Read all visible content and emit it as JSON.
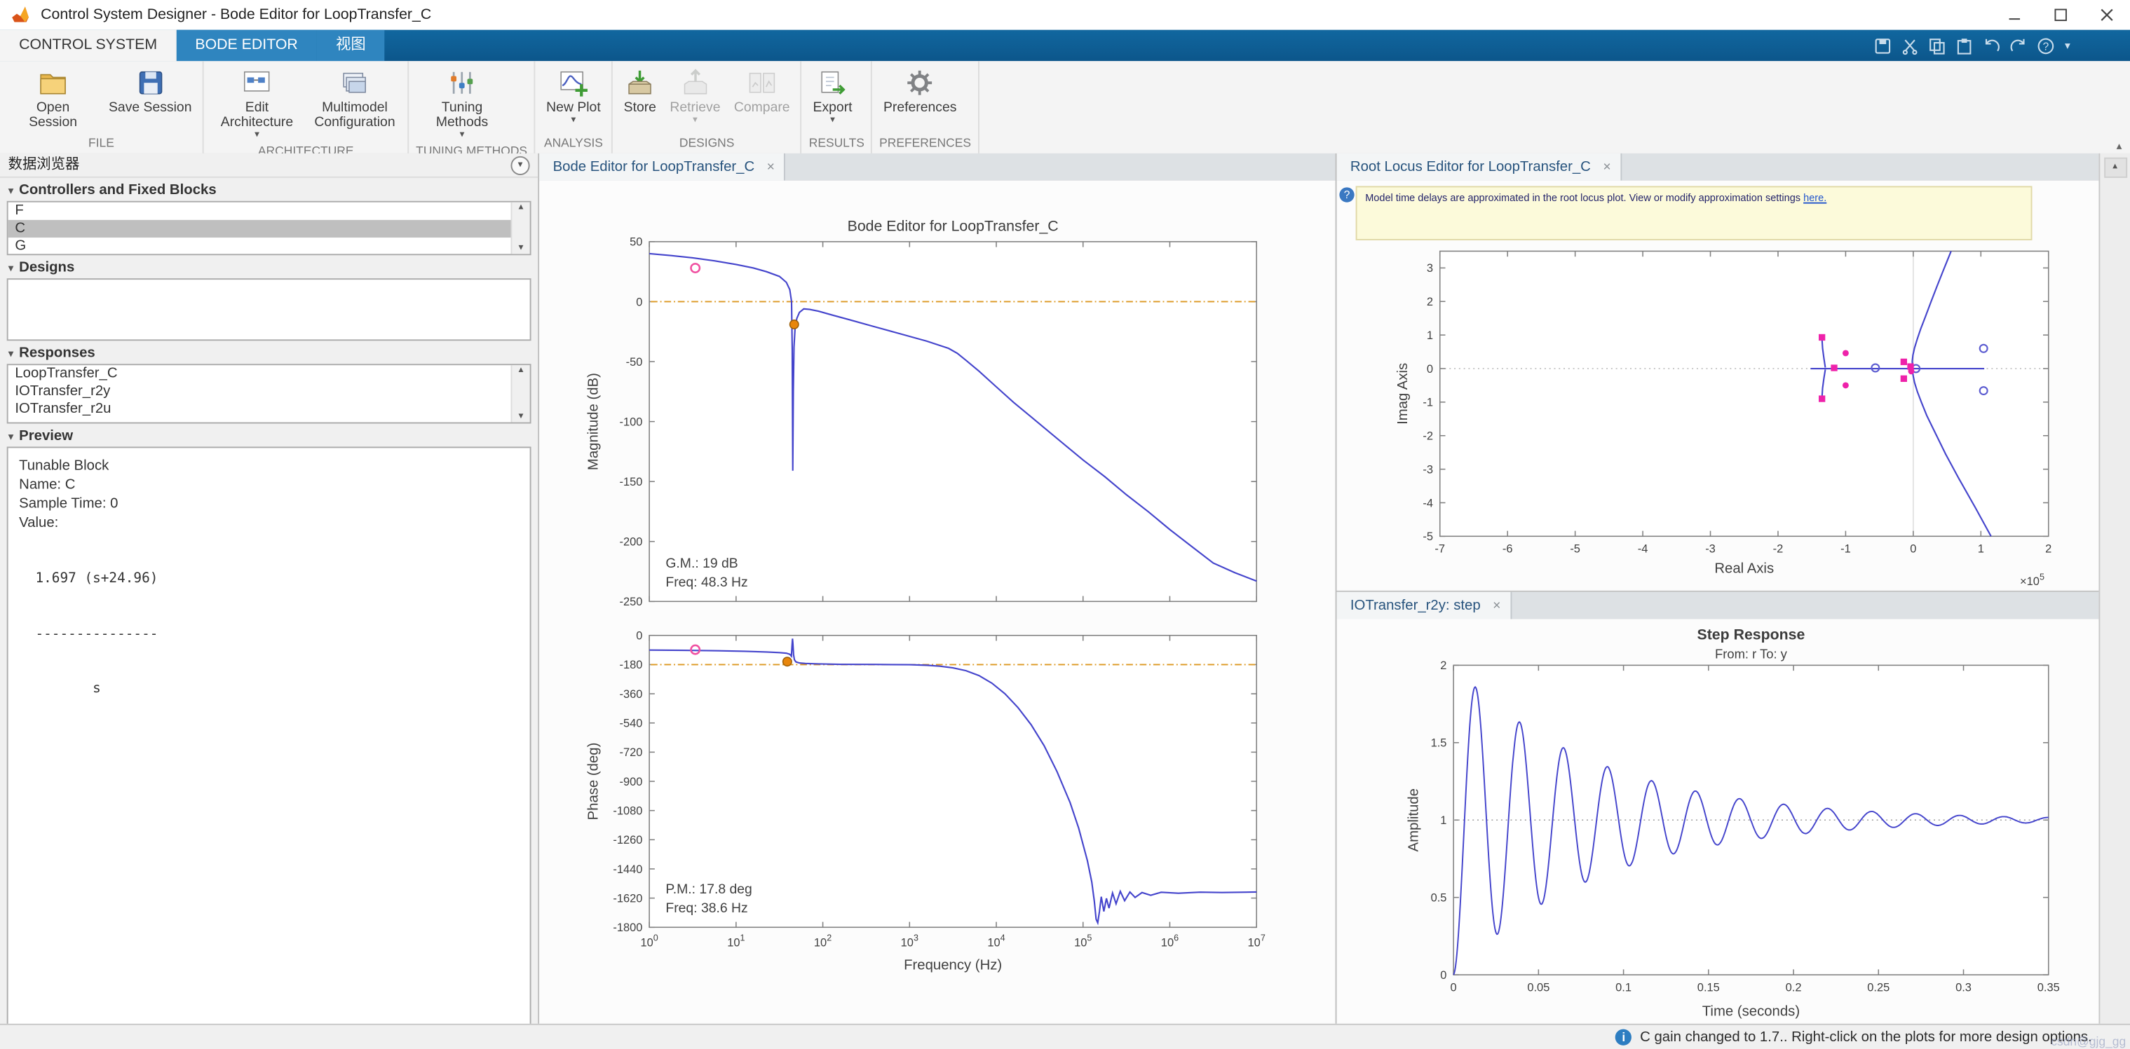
{
  "window": {
    "title": "Control System Designer - Bode Editor for LoopTransfer_C"
  },
  "ribbon": {
    "tabs": [
      {
        "label": "CONTROL SYSTEM"
      },
      {
        "label": "BODE EDITOR"
      },
      {
        "label": "视图"
      }
    ],
    "groups": [
      {
        "label": "FILE",
        "buttons": [
          {
            "label": "Open Session"
          },
          {
            "label": "Save Session"
          }
        ]
      },
      {
        "label": "ARCHITECTURE",
        "buttons": [
          {
            "label": "Edit Architecture",
            "dropdown": true
          },
          {
            "label": "Multimodel Configuration"
          }
        ]
      },
      {
        "label": "TUNING METHODS",
        "buttons": [
          {
            "label": "Tuning Methods",
            "dropdown": true
          }
        ]
      },
      {
        "label": "ANALYSIS",
        "buttons": [
          {
            "label": "New Plot",
            "dropdown": true
          }
        ]
      },
      {
        "label": "DESIGNS",
        "buttons": [
          {
            "label": "Store"
          },
          {
            "label": "Retrieve",
            "dropdown": true,
            "disabled": true
          },
          {
            "label": "Compare",
            "disabled": true
          }
        ]
      },
      {
        "label": "RESULTS",
        "buttons": [
          {
            "label": "Export",
            "dropdown": true
          }
        ]
      },
      {
        "label": "PREFERENCES",
        "buttons": [
          {
            "label": "Preferences"
          }
        ]
      }
    ]
  },
  "data_browser": {
    "title": "数据浏览器",
    "controllers_section": {
      "title": "Controllers and Fixed Blocks",
      "items": [
        "F",
        "C",
        "G"
      ],
      "selected": "C"
    },
    "designs_section": {
      "title": "Designs"
    },
    "responses_section": {
      "title": "Responses",
      "items": [
        "LoopTransfer_C",
        "IOTransfer_r2y",
        "IOTransfer_r2u"
      ]
    },
    "preview_section": {
      "title": "Preview",
      "lines": [
        "Tunable Block",
        "Name: C",
        "Sample Time: 0",
        "Value:"
      ],
      "tf_numerator": "  1.697 (s+24.96)",
      "tf_rule": "  ---------------",
      "tf_denominator": "         s"
    }
  },
  "bode_panel": {
    "tab": "Bode Editor for LoopTransfer_C"
  },
  "rootlocus_panel": {
    "tab": "Root Locus Editor for LoopTransfer_C",
    "info_message": "Model time delays are approximated in the root locus plot. View or modify approximation settings",
    "info_link": "here."
  },
  "step_panel": {
    "tab": "IOTransfer_r2y: step"
  },
  "status_bar": {
    "message": "C gain changed to 1.7.. Right-click on the plots for more design options.",
    "watermark": "csdn@gjg_gg"
  },
  "colors": {
    "curve": "#4444cc",
    "ref_line": "#dd9922",
    "marker_pink": "#f04fa0",
    "marker_orange": "#e8860c",
    "locus_magenta": "#ee22aa",
    "zero_blue": "#5a5ad0"
  },
  "chart_data": [
    {
      "type": "line",
      "id": "bode",
      "title": "Bode Editor for LoopTransfer_C",
      "xlabel": "Frequency (Hz)",
      "x_scale": "log10",
      "x_decades": [
        0,
        1,
        2,
        3,
        4,
        5,
        6,
        7
      ],
      "magnitude": {
        "ylabel": "Magnitude (dB)",
        "ylim": [
          -250,
          50
        ],
        "yticks": [
          50,
          0,
          -50,
          -100,
          -150,
          -200,
          -250
        ],
        "ref_line": 0,
        "margin_lines": [
          "G.M.: 19 dB",
          "Freq: 48.3 Hz"
        ],
        "markers": [
          {
            "type": "circle",
            "logf": 0.53,
            "value": 28
          },
          {
            "type": "dot",
            "logf": 1.67,
            "value": -19
          }
        ],
        "points": [
          [
            0,
            40
          ],
          [
            0.25,
            38.5
          ],
          [
            0.5,
            36.5
          ],
          [
            0.75,
            34
          ],
          [
            1,
            31
          ],
          [
            1.2,
            28
          ],
          [
            1.35,
            25
          ],
          [
            1.5,
            21
          ],
          [
            1.58,
            16
          ],
          [
            1.62,
            10
          ],
          [
            1.64,
            0
          ],
          [
            1.648,
            -40
          ],
          [
            1.654,
            -141
          ],
          [
            1.66,
            -75
          ],
          [
            1.668,
            -38
          ],
          [
            1.68,
            -22
          ],
          [
            1.7,
            -14
          ],
          [
            1.73,
            -9
          ],
          [
            1.78,
            -6
          ],
          [
            1.85,
            -6.5
          ],
          [
            1.95,
            -8
          ],
          [
            2.1,
            -11
          ],
          [
            2.3,
            -15
          ],
          [
            2.6,
            -21
          ],
          [
            2.9,
            -27
          ],
          [
            3.2,
            -33
          ],
          [
            3.45,
            -39
          ],
          [
            3.55,
            -43
          ],
          [
            3.65,
            -49
          ],
          [
            3.8,
            -58
          ],
          [
            4,
            -71
          ],
          [
            4.2,
            -84
          ],
          [
            4.4,
            -96
          ],
          [
            4.6,
            -108
          ],
          [
            4.8,
            -120
          ],
          [
            5,
            -132
          ],
          [
            5.25,
            -146
          ],
          [
            5.5,
            -161
          ],
          [
            5.75,
            -175
          ],
          [
            6,
            -190
          ],
          [
            6.25,
            -204
          ],
          [
            6.5,
            -218
          ],
          [
            6.75,
            -226
          ],
          [
            7,
            -233
          ]
        ]
      },
      "phase": {
        "ylabel": "Phase (deg)",
        "ylim": [
          -1800,
          0
        ],
        "yticks": [
          0,
          -180,
          -360,
          -540,
          -720,
          -900,
          -1080,
          -1260,
          -1440,
          -1620,
          -1800
        ],
        "ref_line": -180,
        "margin_lines": [
          "P.M.: 17.8 deg",
          "Freq: 38.6 Hz"
        ],
        "markers": [
          {
            "type": "circle",
            "logf": 0.53,
            "value": -88
          },
          {
            "type": "dot",
            "logf": 1.59,
            "value": -162
          }
        ],
        "points": [
          [
            0,
            -90
          ],
          [
            0.4,
            -92
          ],
          [
            0.8,
            -95
          ],
          [
            1.1,
            -98
          ],
          [
            1.35,
            -102
          ],
          [
            1.5,
            -106
          ],
          [
            1.58,
            -110
          ],
          [
            1.62,
            -116
          ],
          [
            1.638,
            -128
          ],
          [
            1.645,
            -70
          ],
          [
            1.65,
            -20
          ],
          [
            1.656,
            -50
          ],
          [
            1.663,
            -120
          ],
          [
            1.672,
            -150
          ],
          [
            1.69,
            -163
          ],
          [
            1.73,
            -170
          ],
          [
            1.8,
            -173
          ],
          [
            1.95,
            -176
          ],
          [
            2.2,
            -178
          ],
          [
            2.6,
            -179
          ],
          [
            3,
            -181
          ],
          [
            3.2,
            -184
          ],
          [
            3.35,
            -190
          ],
          [
            3.5,
            -200
          ],
          [
            3.65,
            -218
          ],
          [
            3.8,
            -248
          ],
          [
            3.95,
            -295
          ],
          [
            4.1,
            -360
          ],
          [
            4.25,
            -445
          ],
          [
            4.4,
            -550
          ],
          [
            4.55,
            -680
          ],
          [
            4.7,
            -840
          ],
          [
            4.85,
            -1030
          ],
          [
            4.95,
            -1190
          ],
          [
            5.05,
            -1390
          ],
          [
            5.1,
            -1520
          ],
          [
            5.13,
            -1640
          ],
          [
            5.15,
            -1750
          ],
          [
            5.17,
            -1772
          ],
          [
            5.19,
            -1700
          ],
          [
            5.21,
            -1612
          ],
          [
            5.24,
            -1702
          ],
          [
            5.27,
            -1622
          ],
          [
            5.3,
            -1682
          ],
          [
            5.34,
            -1588
          ],
          [
            5.38,
            -1655
          ],
          [
            5.43,
            -1578
          ],
          [
            5.48,
            -1636
          ],
          [
            5.54,
            -1582
          ],
          [
            5.6,
            -1616
          ],
          [
            5.68,
            -1586
          ],
          [
            5.78,
            -1602
          ],
          [
            5.9,
            -1584
          ],
          [
            6.1,
            -1590
          ],
          [
            6.35,
            -1583
          ],
          [
            6.6,
            -1586
          ],
          [
            7,
            -1582
          ]
        ]
      }
    },
    {
      "type": "scatter",
      "id": "rootlocus",
      "xlabel": "Real Axis",
      "ylabel": "Imag Axis",
      "x_multiplier_exp": 5,
      "xlim": [
        -7,
        2
      ],
      "ylim": [
        -5,
        3.5
      ],
      "xticks": [
        -7,
        -6,
        -5,
        -4,
        -3,
        -2,
        -1,
        0,
        1,
        2
      ],
      "yticks": [
        3,
        2,
        1,
        0,
        -1,
        -2,
        -3,
        -4,
        -5
      ],
      "branches": [
        [
          [
            0.56,
            3.5
          ],
          [
            0.45,
            2.95
          ],
          [
            0.35,
            2.45
          ],
          [
            0.26,
            1.98
          ],
          [
            0.18,
            1.55
          ],
          [
            0.11,
            1.18
          ],
          [
            0.06,
            0.88
          ],
          [
            0.02,
            0.62
          ],
          [
            -0.005,
            0.4
          ],
          [
            -0.015,
            0.22
          ],
          [
            -0.01,
            0.08
          ]
        ],
        [
          [
            -0.01,
            -0.08
          ],
          [
            0,
            -0.22
          ],
          [
            0.02,
            -0.42
          ],
          [
            0.06,
            -0.68
          ],
          [
            0.12,
            -1.0
          ],
          [
            0.2,
            -1.4
          ],
          [
            0.32,
            -1.9
          ],
          [
            0.48,
            -2.55
          ],
          [
            0.68,
            -3.3
          ],
          [
            0.92,
            -4.15
          ],
          [
            1.15,
            -5
          ]
        ],
        [
          [
            -1.52,
            0
          ],
          [
            1.05,
            0
          ]
        ],
        [
          [
            -1.35,
            0.92
          ],
          [
            -1.34,
            0.6
          ],
          [
            -1.32,
            0.3
          ],
          [
            -1.3,
            0.03
          ]
        ],
        [
          [
            -1.35,
            -0.9
          ],
          [
            -1.34,
            -0.58
          ],
          [
            -1.32,
            -0.28
          ],
          [
            -1.3,
            -0.03
          ]
        ]
      ],
      "closed_loop_poles_squares": [
        [
          -1.35,
          0.93
        ],
        [
          -1.35,
          -0.9
        ],
        [
          -1.17,
          0.02
        ],
        [
          -0.14,
          0.2
        ],
        [
          -0.14,
          -0.3
        ],
        [
          -0.04,
          0.06
        ]
      ],
      "pink_dots": [
        [
          -1.0,
          0.46
        ],
        [
          -1.0,
          -0.5
        ],
        [
          -0.03,
          -0.08
        ]
      ],
      "zeros_circles": [
        [
          1.04,
          0.6
        ],
        [
          1.04,
          -0.66
        ],
        [
          -0.56,
          0.02
        ],
        [
          0.04,
          0
        ]
      ]
    },
    {
      "type": "line",
      "id": "step",
      "title": "Step Response",
      "subtitle": "From: r  To: y",
      "xlabel": "Time (seconds)",
      "ylabel": "Amplitude",
      "xlim": [
        0,
        0.35
      ],
      "ylim": [
        0,
        2
      ],
      "xticks": [
        0,
        0.05,
        0.1,
        0.15,
        0.2,
        0.25,
        0.3,
        0.35
      ],
      "yticks": [
        0,
        0.5,
        1,
        1.5,
        2
      ],
      "final_value_line": 1,
      "model": {
        "kind": "damped_cosine",
        "final": 1,
        "freq_hz": 38.6,
        "decay_tau": 0.085
      }
    }
  ]
}
